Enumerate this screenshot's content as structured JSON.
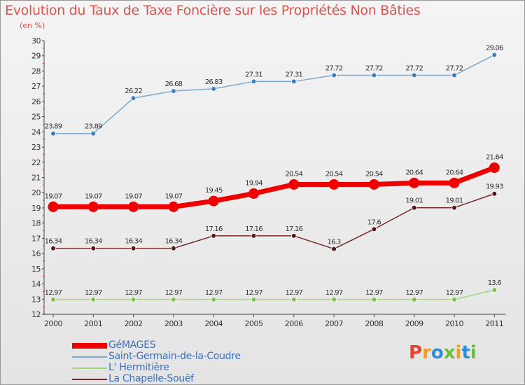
{
  "title": "Evolution du Taux de Taxe Foncière sur les Propriétés Non Bâties",
  "subtitle": "(en %)",
  "logo": {
    "text": "Proxiti"
  },
  "chart_data": {
    "type": "line",
    "title": "Evolution du Taux de Taxe Foncière sur les Propriétés Non Bâties",
    "subtitle": "(en %)",
    "x": [
      2000,
      2001,
      2002,
      2003,
      2004,
      2005,
      2006,
      2007,
      2008,
      2009,
      2010,
      2011
    ],
    "ylim": [
      12,
      30
    ],
    "yticks": [
      12,
      13,
      14,
      15,
      16,
      17,
      18,
      19,
      20,
      21,
      22,
      23,
      24,
      25,
      26,
      27,
      28,
      29,
      30
    ],
    "grid": false,
    "legend_position": "bottom-left",
    "series": [
      {
        "name": "GéMAGES",
        "color": "#ee0000",
        "marker_color": "#ee0000",
        "values": [
          19.07,
          19.07,
          19.07,
          19.07,
          19.45,
          19.94,
          20.54,
          20.54,
          20.54,
          20.64,
          20.64,
          21.64
        ],
        "labels": [
          "19.07",
          "19.07",
          "19.07",
          "19.07",
          "19.45",
          "19.94",
          "20.54",
          "20.54",
          "20.54",
          "20.64",
          "20.64",
          "21.64"
        ]
      },
      {
        "name": "Saint-Germain-de-la-Coudre",
        "color": "#7aaad0",
        "marker_color": "#3a7fc1",
        "values": [
          23.89,
          23.89,
          26.22,
          26.68,
          26.83,
          27.31,
          27.31,
          27.72,
          27.72,
          27.72,
          27.72,
          29.06
        ],
        "labels": [
          "23.89",
          "23.89",
          "26.22",
          "26.68",
          "26.83",
          "27.31",
          "27.31",
          "27.72",
          "27.72",
          "27.72",
          "27.72",
          "29.06"
        ]
      },
      {
        "name": "L' Hermitière",
        "color": "#a3d67c",
        "marker_color": "#7cc247",
        "values": [
          12.97,
          12.97,
          12.97,
          12.97,
          12.97,
          12.97,
          12.97,
          12.97,
          12.97,
          12.97,
          12.97,
          13.6
        ],
        "labels": [
          "12.97",
          "12.97",
          "12.97",
          "12.97",
          "12.97",
          "12.97",
          "12.97",
          "12.97",
          "12.97",
          "12.97",
          "12.97",
          "13.6"
        ]
      },
      {
        "name": "La Chapelle-Souëf",
        "color": "#7a2a2a",
        "marker_color": "#5a1515",
        "values": [
          16.34,
          16.34,
          16.34,
          16.34,
          17.16,
          17.16,
          17.16,
          16.3,
          17.6,
          19.01,
          19.01,
          19.93
        ],
        "labels": [
          "16.34",
          "16.34",
          "16.34",
          "16.34",
          "17.16",
          "17.16",
          "17.16",
          "16.3",
          "17.6",
          "19.01",
          "19.01",
          "19.93"
        ]
      }
    ]
  }
}
